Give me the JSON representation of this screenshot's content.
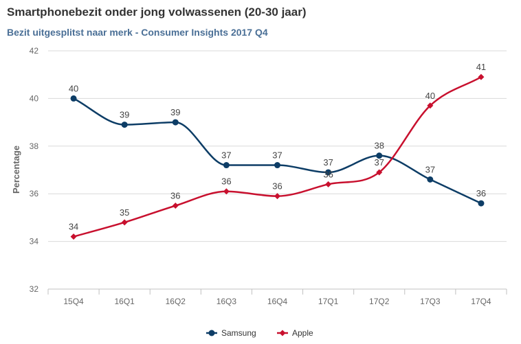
{
  "chart_data": {
    "type": "line",
    "title": "Smartphonebezit onder jong volwassenen (20-30 jaar)",
    "subtitle": "Bezit uitgesplitst naar merk - Consumer Insights 2017 Q4",
    "xlabel": "",
    "ylabel": "Percentage",
    "ylim": [
      32,
      42
    ],
    "yticks": [
      32,
      34,
      36,
      38,
      40,
      42
    ],
    "grid": true,
    "legend_position": "bottom",
    "categories": [
      "15Q4",
      "16Q1",
      "16Q2",
      "16Q3",
      "16Q4",
      "17Q1",
      "17Q2",
      "17Q3",
      "17Q4"
    ],
    "series": [
      {
        "name": "Samsung",
        "color": "#0d3d66",
        "marker": "circle",
        "values": [
          40.0,
          38.9,
          39.0,
          37.2,
          37.2,
          36.9,
          37.6,
          36.6,
          35.6
        ],
        "labels": [
          "40",
          "39",
          "39",
          "37",
          "37",
          "37",
          "38",
          "37",
          "36"
        ]
      },
      {
        "name": "Apple",
        "color": "#c8102e",
        "marker": "diamond",
        "values": [
          34.2,
          34.8,
          35.5,
          36.1,
          35.9,
          36.4,
          36.9,
          39.7,
          40.9
        ],
        "labels": [
          "34",
          "35",
          "36",
          "36",
          "36",
          "36",
          "37",
          "40",
          "41"
        ]
      }
    ]
  }
}
